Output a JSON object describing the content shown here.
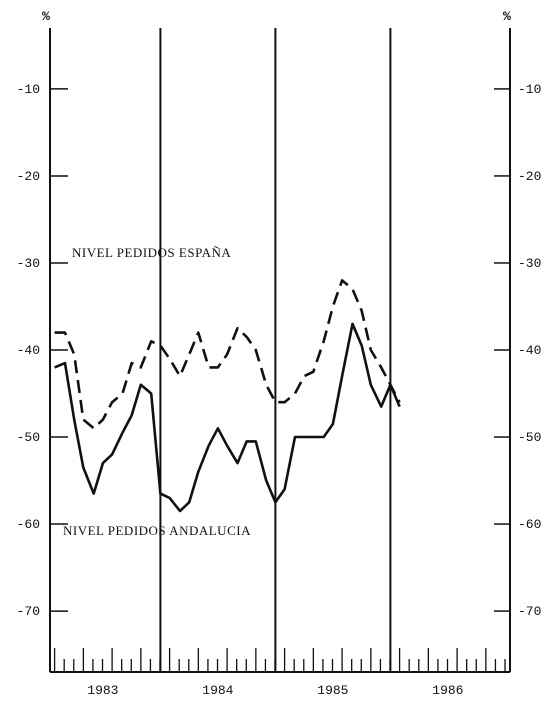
{
  "chart_data": {
    "type": "line",
    "unit_left": "%",
    "unit_right": "%",
    "y_ticks": [
      "-10",
      "-20",
      "-30",
      "-40",
      "-50",
      "-60",
      "-70"
    ],
    "y_tick_values": [
      -10,
      -20,
      -30,
      -40,
      -50,
      -60,
      -70
    ],
    "ylim": [
      -77,
      -3
    ],
    "x_labels": [
      "1983",
      "1984",
      "1985",
      "1986"
    ],
    "x_label_positions": [
      1983,
      1984,
      1985,
      1986
    ],
    "xlim": [
      1982.54,
      1986.54
    ],
    "year_dividers": [
      1983.5,
      1984.5,
      1985.5
    ],
    "series": [
      {
        "name": "NIVEL PEDIDOS ESPAÑA",
        "style": "dashed",
        "x": [
          1982.58,
          1982.67,
          1982.75,
          1982.83,
          1982.92,
          1983.0,
          1983.08,
          1983.17,
          1983.25,
          1983.33,
          1983.42,
          1983.5,
          1983.58,
          1983.67,
          1983.75,
          1983.83,
          1983.92,
          1984.0,
          1984.08,
          1984.17,
          1984.25,
          1984.33,
          1984.42,
          1984.5,
          1984.58,
          1984.67,
          1984.75,
          1984.83,
          1984.92,
          1985.0,
          1985.08,
          1985.17,
          1985.25,
          1985.33,
          1985.42,
          1985.5,
          1985.58
        ],
        "values": [
          -38,
          -38,
          -40.5,
          -48,
          -49,
          -48,
          -46,
          -45,
          -41.5,
          -42,
          -39,
          -39.5,
          -41,
          -43,
          -40.5,
          -38,
          -42,
          -42,
          -40.5,
          -37.5,
          -38.5,
          -40,
          -44,
          -46,
          -46,
          -45,
          -43,
          -42.5,
          -39,
          -35,
          -32,
          -33,
          -35.5,
          -40,
          -42,
          -44,
          -46
        ]
      },
      {
        "name": "NIVEL PEDIDOS ANDALUCIA",
        "style": "solid",
        "x": [
          1982.58,
          1982.67,
          1982.75,
          1982.83,
          1982.92,
          1983.0,
          1983.08,
          1983.17,
          1983.25,
          1983.33,
          1983.42,
          1983.5,
          1983.58,
          1983.67,
          1983.75,
          1983.83,
          1983.92,
          1984.0,
          1984.08,
          1984.17,
          1984.25,
          1984.33,
          1984.42,
          1984.5,
          1984.58,
          1984.67,
          1984.75,
          1984.83,
          1984.92,
          1985.0,
          1985.08,
          1985.17,
          1985.25,
          1985.33,
          1985.42,
          1985.5,
          1985.58
        ],
        "values": [
          -42,
          -41.5,
          -48,
          -53.5,
          -56.5,
          -53,
          -52,
          -49.5,
          -47.5,
          -44,
          -45,
          -56.5,
          -57,
          -58.5,
          -57.5,
          -54,
          -51,
          -49,
          -51,
          -53,
          -50.5,
          -50.5,
          -55,
          -57.5,
          -56,
          -50,
          -50,
          -50,
          -50,
          -48.5,
          -43,
          -37,
          -39.5,
          -44,
          -46.5,
          -44,
          -46.5
        ]
      }
    ],
    "label_espana": "NIVEL PEDIDOS ESPAÑA",
    "label_andalucia": "NIVEL PEDIDOS ANDALUCIA"
  }
}
